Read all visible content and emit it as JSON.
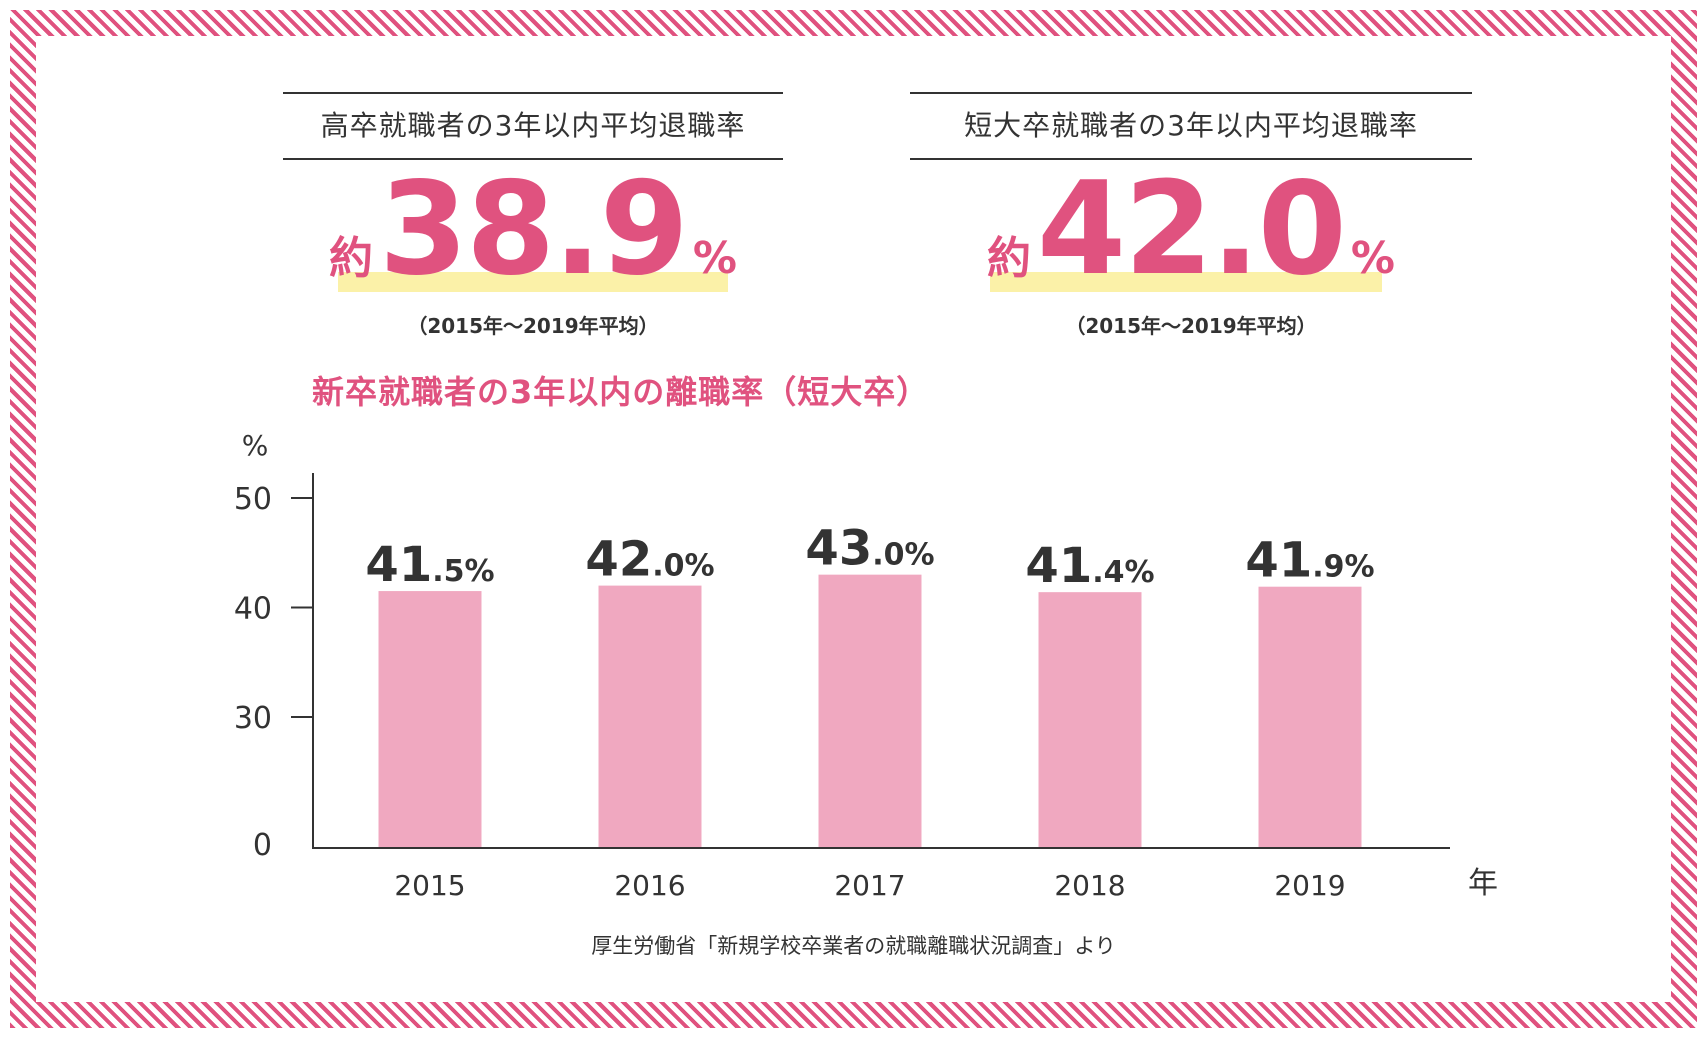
{
  "stats": [
    {
      "heading": "高卒就職者の3年以内平均退職率",
      "approx": "約",
      "value": "38.9",
      "unit": "%",
      "period": "（2015年～2019年平均）"
    },
    {
      "heading": "短大卒就職者の3年以内平均退職率",
      "approx": "約",
      "value": "42.0",
      "unit": "%",
      "period": "（2015年～2019年平均）"
    }
  ],
  "colors": {
    "accent": "#e0527f",
    "bar": "#f0a8c0",
    "highlight": "#fbf1a8",
    "text": "#333333"
  },
  "chart_title": "新卒就職者の3年以内の離職率（短大卒）",
  "source": "厚生労働省「新規学校卒業者の就職離職状況調査」より",
  "chart_data": {
    "type": "bar",
    "title": "新卒就職者の3年以内の離職率（短大卒）",
    "ylabel": "%",
    "xlabel": "年",
    "categories": [
      "2015",
      "2016",
      "2017",
      "2018",
      "2019"
    ],
    "values": [
      41.5,
      42.0,
      43.0,
      41.4,
      41.9
    ],
    "value_labels": [
      {
        "int": "41",
        "dec": ".5%"
      },
      {
        "int": "42",
        "dec": ".0%"
      },
      {
        "int": "43",
        "dec": ".0%"
      },
      {
        "int": "41",
        "dec": ".4%"
      },
      {
        "int": "41",
        "dec": ".9%"
      }
    ],
    "yticks": [
      "0",
      "30",
      "40",
      "50"
    ],
    "ylim": [
      0,
      50
    ],
    "axis_break": "0–30 compressed",
    "grid": false,
    "legend": "none"
  }
}
